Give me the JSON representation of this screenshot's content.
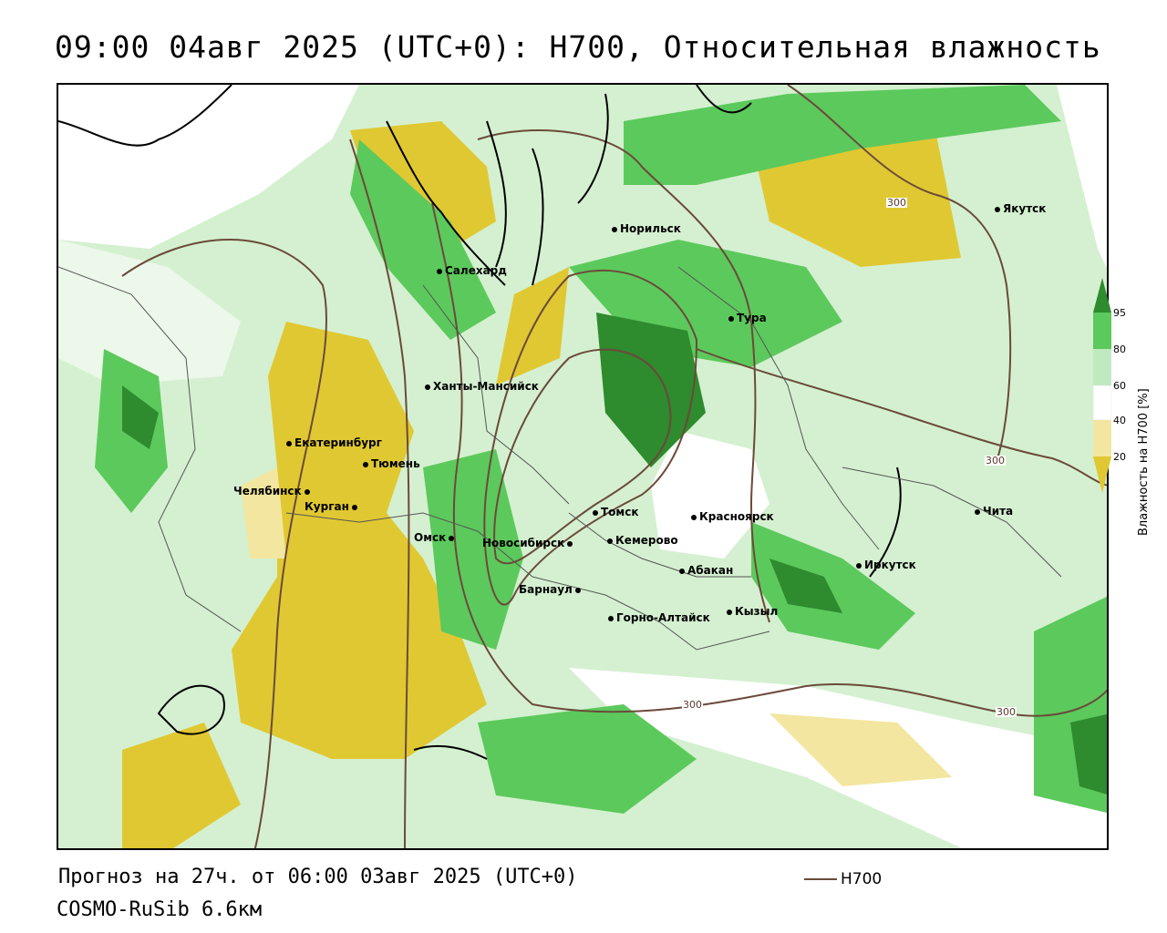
{
  "title": "09:00 04авг 2025 (UTC+0): H700, Относительная влажность",
  "footer": {
    "forecast": "Прогноз на 27ч. от 06:00 03авг 2025 (UTC+0)",
    "model": "COSMO-RuSib 6.6км"
  },
  "line_legend": {
    "label": "H700",
    "color": "#6b4a3a"
  },
  "legend": {
    "title": "Влажность на H700 [%]",
    "ticks": [
      "95",
      "80",
      "60",
      "40",
      "20"
    ],
    "colors": {
      "very_high": "#2e8b2e",
      "high": "#5cc95c",
      "mid": "#bfeabf",
      "white": "#ffffff",
      "low": "#f3e6a0",
      "very_low": "#e0c832"
    }
  },
  "contour_labels": [
    "300",
    "300",
    "300",
    "300"
  ],
  "cities": [
    {
      "name": "Якутск"
    },
    {
      "name": "Норильск"
    },
    {
      "name": "Салехард"
    },
    {
      "name": "Тура"
    },
    {
      "name": "Ханты-Мансийск"
    },
    {
      "name": "Екатеринбург"
    },
    {
      "name": "Тюмень"
    },
    {
      "name": "Челябинск"
    },
    {
      "name": "Курган"
    },
    {
      "name": "Омск"
    },
    {
      "name": "Новосибирск"
    },
    {
      "name": "Томск"
    },
    {
      "name": "Кемерово"
    },
    {
      "name": "Красноярск"
    },
    {
      "name": "Абакан"
    },
    {
      "name": "Барнаул"
    },
    {
      "name": "Горно-Алтайск"
    },
    {
      "name": "Кызыл"
    },
    {
      "name": "Иркутск"
    },
    {
      "name": "Чита"
    }
  ]
}
